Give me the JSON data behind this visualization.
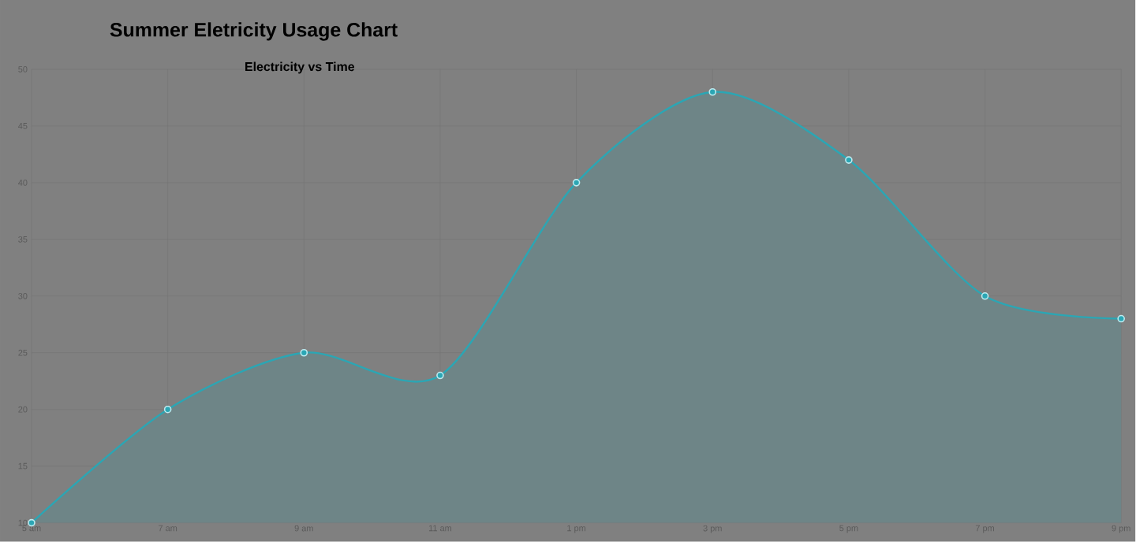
{
  "chart_data": {
    "type": "area",
    "title": "Summer Eletricity Usage Chart",
    "subtitle": "Electricity vs Time",
    "categories": [
      "5 am",
      "7 am",
      "9 am",
      "11 am",
      "1 pm",
      "3 pm",
      "5 pm",
      "7 pm",
      "9 pm"
    ],
    "series": [
      {
        "color": "#2ba6b4",
        "values": [
          10,
          20,
          25,
          23,
          40,
          48,
          42,
          30,
          28
        ]
      }
    ],
    "ylim": [
      10,
      50
    ],
    "yticks": [
      10,
      15,
      20,
      25,
      30,
      35,
      40,
      45,
      50
    ],
    "grid": true,
    "marker": "circle",
    "line_style": "solid"
  }
}
